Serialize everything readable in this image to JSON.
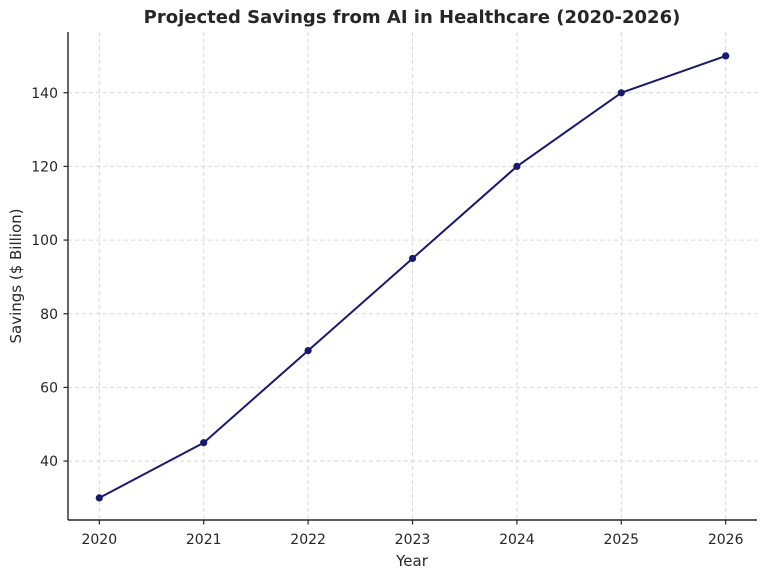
{
  "chart_data": {
    "type": "line",
    "title": "Projected Savings from AI in Healthcare (2020-2026)",
    "xlabel": "Year",
    "ylabel": "Savings ($ Billion)",
    "x": [
      2020,
      2021,
      2022,
      2023,
      2024,
      2025,
      2026
    ],
    "y": [
      30,
      45,
      70,
      95,
      120,
      140,
      150
    ],
    "xticks": [
      2020,
      2021,
      2022,
      2023,
      2024,
      2025,
      2026
    ],
    "yticks": [
      40,
      60,
      80,
      100,
      120,
      140
    ],
    "xlim": [
      2019.7,
      2026.3
    ],
    "ylim": [
      24,
      156.5
    ],
    "grid": true,
    "grid_style": "dashed",
    "legend": null,
    "colors": {
      "line": "#191970",
      "marker": "#191970",
      "grid": "#d9d9d9",
      "spine": "#262626",
      "text": "#262626",
      "background": "#ffffff"
    },
    "marker_shape": "circle",
    "line_width": 2,
    "marker_radius": 3.6
  }
}
